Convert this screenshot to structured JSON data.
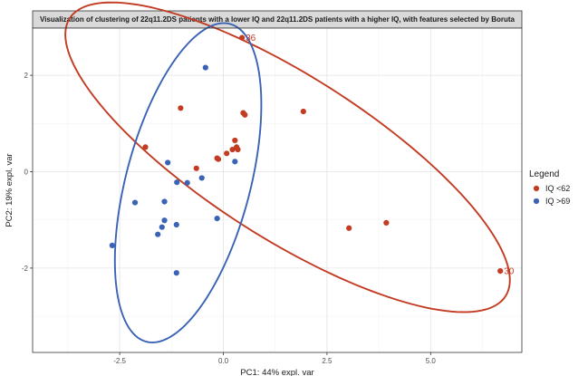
{
  "chart_data": {
    "type": "scatter",
    "title": "Visualization of clustering of 22q11.2DS patients with a lower IQ and 22q11.2DS patients with a higher IQ,  with features selected by Boruta",
    "xlabel": "PC1: 44% expl. var",
    "ylabel": "PC2: 19% expl. var",
    "xlim": [
      -4.6,
      7.2
    ],
    "ylim": [
      -3.75,
      2.98
    ],
    "xticks": [
      -2.5,
      0.0,
      2.5,
      5.0
    ],
    "xtick_labels": [
      "-2.5",
      "0.0",
      "2.5",
      "5.0"
    ],
    "yticks": [
      -2,
      0,
      2
    ],
    "ytick_labels": [
      "-2",
      "0",
      "2"
    ],
    "grid": true,
    "legend": {
      "title": "Legend",
      "position": "right",
      "entries": [
        "IQ <62",
        "IQ >69"
      ]
    },
    "series": [
      {
        "name": "IQ <62",
        "color": "#c23b22",
        "points": [
          {
            "x": 0.45,
            "y": 2.78,
            "label": "36"
          },
          {
            "x": 6.68,
            "y": -2.06,
            "label": "30"
          },
          {
            "x": -1.03,
            "y": 1.32
          },
          {
            "x": -1.88,
            "y": 0.51
          },
          {
            "x": -0.65,
            "y": 0.07
          },
          {
            "x": -0.15,
            "y": 0.28
          },
          {
            "x": -0.12,
            "y": 0.26
          },
          {
            "x": 0.08,
            "y": 0.38
          },
          {
            "x": 0.22,
            "y": 0.46
          },
          {
            "x": 0.35,
            "y": 0.46
          },
          {
            "x": 0.28,
            "y": 0.65
          },
          {
            "x": 0.32,
            "y": 0.51
          },
          {
            "x": 0.52,
            "y": 1.18
          },
          {
            "x": 0.48,
            "y": 1.22
          },
          {
            "x": 1.93,
            "y": 1.25
          },
          {
            "x": 3.03,
            "y": -1.17
          },
          {
            "x": 3.93,
            "y": -1.06
          }
        ]
      },
      {
        "name": "IQ >69",
        "color": "#3a62b5",
        "points": [
          {
            "x": -0.43,
            "y": 2.16
          },
          {
            "x": -1.34,
            "y": 0.19
          },
          {
            "x": 0.28,
            "y": 0.21
          },
          {
            "x": -1.12,
            "y": -0.22
          },
          {
            "x": -0.87,
            "y": -0.23
          },
          {
            "x": -0.52,
            "y": -0.13
          },
          {
            "x": -2.13,
            "y": -0.64
          },
          {
            "x": -1.42,
            "y": -0.62
          },
          {
            "x": -1.42,
            "y": -1.01
          },
          {
            "x": -1.13,
            "y": -1.1
          },
          {
            "x": -1.48,
            "y": -1.15
          },
          {
            "x": -1.58,
            "y": -1.3
          },
          {
            "x": -2.68,
            "y": -1.53
          },
          {
            "x": -0.15,
            "y": -0.97
          },
          {
            "x": -1.13,
            "y": -2.1
          }
        ]
      }
    ],
    "ellipses": [
      {
        "series": "IQ <62",
        "cx": 1.55,
        "cy": 0.3,
        "rx": 6.0,
        "ry": 1.75,
        "angle_deg": -28
      },
      {
        "series": "IQ >69",
        "cx": -0.85,
        "cy": -0.23,
        "rx": 3.45,
        "ry": 1.48,
        "angle_deg": 72
      }
    ]
  }
}
